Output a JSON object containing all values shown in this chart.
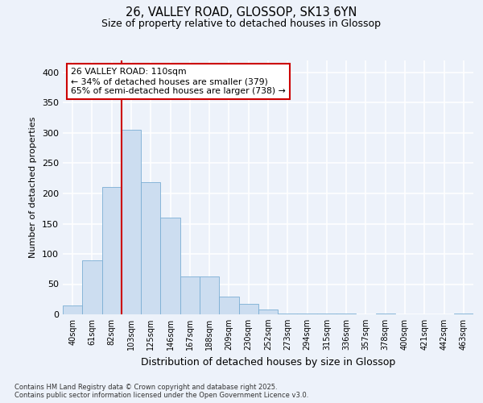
{
  "title_line1": "26, VALLEY ROAD, GLOSSOP, SK13 6YN",
  "title_line2": "Size of property relative to detached houses in Glossop",
  "xlabel": "Distribution of detached houses by size in Glossop",
  "ylabel": "Number of detached properties",
  "bar_values": [
    15,
    90,
    210,
    305,
    218,
    160,
    63,
    63,
    30,
    18,
    8,
    2,
    2,
    2,
    2,
    0,
    2,
    0,
    0,
    0,
    2
  ],
  "categories": [
    "40sqm",
    "61sqm",
    "82sqm",
    "103sqm",
    "125sqm",
    "146sqm",
    "167sqm",
    "188sqm",
    "209sqm",
    "230sqm",
    "252sqm",
    "273sqm",
    "294sqm",
    "315sqm",
    "336sqm",
    "357sqm",
    "378sqm",
    "400sqm",
    "421sqm",
    "442sqm",
    "463sqm"
  ],
  "bar_color": "#ccddf0",
  "bar_edge_color": "#7aaed4",
  "vline_color": "#cc0000",
  "vline_x_index": 3,
  "ylim": [
    0,
    420
  ],
  "yticks": [
    0,
    50,
    100,
    150,
    200,
    250,
    300,
    350,
    400
  ],
  "annotation_text": "26 VALLEY ROAD: 110sqm\n← 34% of detached houses are smaller (379)\n65% of semi-detached houses are larger (738) →",
  "annotation_box_color": "#ffffff",
  "annotation_box_edge": "#cc0000",
  "footer_text": "Contains HM Land Registry data © Crown copyright and database right 2025.\nContains public sector information licensed under the Open Government Licence v3.0.",
  "bg_color": "#edf2fa",
  "plot_bg_color": "#edf2fa",
  "grid_color": "#ffffff",
  "fig_width": 6.0,
  "fig_height": 5.0
}
